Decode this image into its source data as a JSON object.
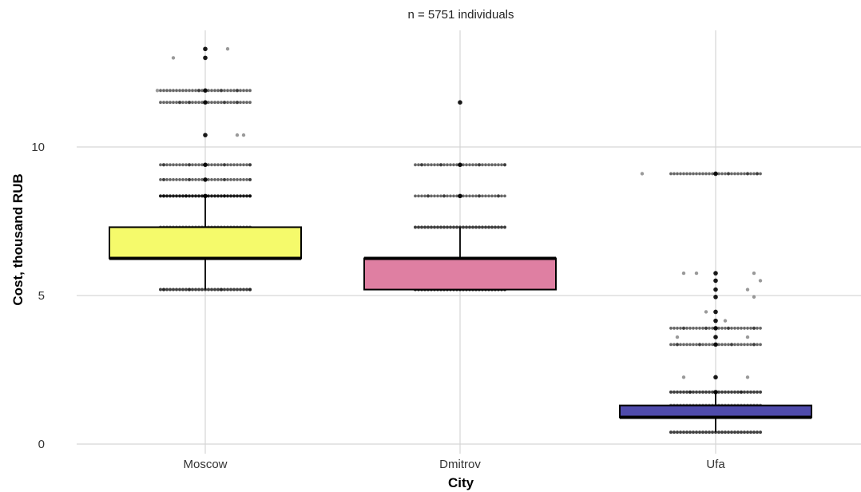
{
  "chart_data": {
    "type": "box",
    "subtitle": "n = 5751 individuals",
    "xlabel": "City",
    "ylabel": "Cost, thousand RUB",
    "ylim": [
      0,
      13.5
    ],
    "y_ticks": [
      0,
      5,
      10
    ],
    "grid": true,
    "legend": "none",
    "categories": [
      "Moscow",
      "Dmitrov",
      "Ufa"
    ],
    "boxes": [
      {
        "category": "Moscow",
        "color": "#f5fa6b",
        "whisker_low": 5.2,
        "q1": 6.25,
        "median": 6.25,
        "q3": 7.3,
        "whisker_high": 8.35,
        "outliers": [
          [
            -0.13,
            5.2
          ],
          [
            -0.05,
            5.2
          ],
          [
            0.05,
            5.2
          ],
          [
            0.14,
            5.2
          ],
          [
            0.0,
            8.35
          ],
          [
            -0.13,
            8.35
          ],
          [
            -0.06,
            8.35
          ],
          [
            0.06,
            8.35
          ],
          [
            0.14,
            8.35
          ],
          [
            -0.13,
            8.9
          ],
          [
            -0.05,
            8.9
          ],
          [
            0.0,
            8.9
          ],
          [
            0.06,
            8.9
          ],
          [
            0.14,
            8.9
          ],
          [
            -0.13,
            9.4
          ],
          [
            -0.05,
            9.4
          ],
          [
            0.0,
            9.4
          ],
          [
            0.06,
            9.4
          ],
          [
            0.14,
            9.4
          ],
          [
            0.0,
            10.4
          ],
          [
            0.1,
            10.4
          ],
          [
            0.12,
            10.4
          ],
          [
            -0.08,
            11.5
          ],
          [
            -0.05,
            11.5
          ],
          [
            0.0,
            11.5
          ],
          [
            0.06,
            11.5
          ],
          [
            0.1,
            11.5
          ],
          [
            -0.15,
            11.9
          ],
          [
            -0.02,
            11.9
          ],
          [
            0.0,
            11.9
          ],
          [
            0.05,
            11.9
          ],
          [
            0.1,
            11.9
          ],
          [
            -0.1,
            13.0
          ],
          [
            0.0,
            13.0
          ],
          [
            0.0,
            13.3
          ],
          [
            0.07,
            13.3
          ]
        ]
      },
      {
        "category": "Dmitrov",
        "color": "#df7fa2",
        "whisker_low": 5.2,
        "q1": 5.2,
        "median": 6.25,
        "q3": 6.25,
        "whisker_high": 7.3,
        "outliers": [
          [
            -0.1,
            8.35
          ],
          [
            -0.05,
            8.35
          ],
          [
            0.0,
            8.35
          ],
          [
            0.06,
            8.35
          ],
          [
            0.12,
            8.35
          ],
          [
            -0.12,
            9.4
          ],
          [
            -0.06,
            9.4
          ],
          [
            0.0,
            9.4
          ],
          [
            0.06,
            9.4
          ],
          [
            0.14,
            9.4
          ],
          [
            0.0,
            11.5
          ]
        ]
      },
      {
        "category": "Ufa",
        "color": "#4f4bab",
        "whisker_low": 0.4,
        "q1": 0.9,
        "median": 0.9,
        "q3": 1.3,
        "whisker_high": 1.75,
        "outliers": [
          [
            -0.08,
            1.75
          ],
          [
            0.0,
            1.75
          ],
          [
            0.08,
            1.75
          ],
          [
            -0.1,
            2.25
          ],
          [
            0.0,
            2.25
          ],
          [
            0.1,
            2.25
          ],
          [
            -0.12,
            3.35
          ],
          [
            -0.05,
            3.35
          ],
          [
            0.0,
            3.35
          ],
          [
            0.05,
            3.35
          ],
          [
            0.12,
            3.35
          ],
          [
            -0.12,
            3.6
          ],
          [
            0.0,
            3.6
          ],
          [
            0.1,
            3.6
          ],
          [
            -0.1,
            3.9
          ],
          [
            -0.03,
            3.9
          ],
          [
            0.0,
            3.9
          ],
          [
            0.04,
            3.9
          ],
          [
            0.12,
            3.9
          ],
          [
            0.0,
            4.15
          ],
          [
            0.03,
            4.15
          ],
          [
            -0.03,
            4.45
          ],
          [
            0.0,
            4.45
          ],
          [
            0.0,
            4.95
          ],
          [
            0.12,
            4.95
          ],
          [
            0.0,
            5.2
          ],
          [
            0.1,
            5.2
          ],
          [
            0.0,
            5.5
          ],
          [
            0.14,
            5.5
          ],
          [
            -0.1,
            5.75
          ],
          [
            -0.06,
            5.75
          ],
          [
            0.0,
            5.75
          ],
          [
            0.12,
            5.75
          ],
          [
            -0.23,
            9.1
          ],
          [
            0.0,
            9.1
          ],
          [
            0.04,
            9.1
          ],
          [
            0.1,
            9.1
          ],
          [
            0.13,
            9.1
          ]
        ]
      }
    ]
  }
}
